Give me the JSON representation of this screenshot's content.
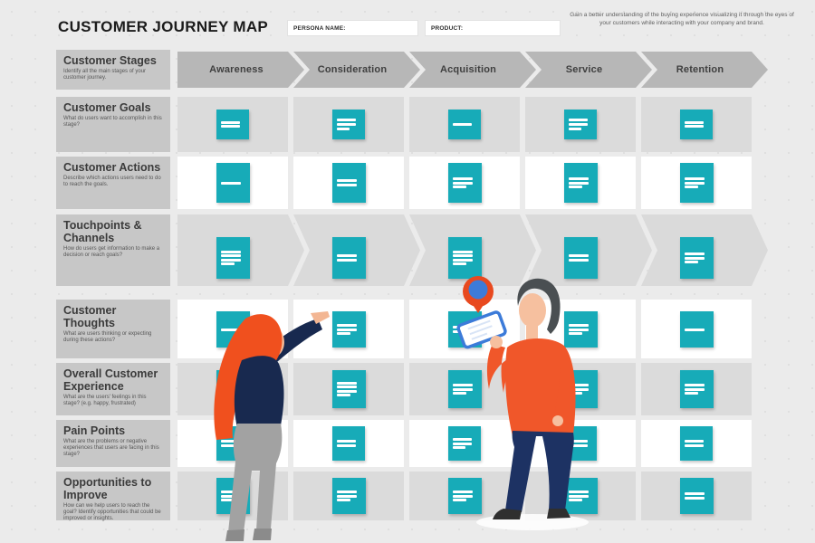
{
  "header": {
    "title": "CUSTOMER JOURNEY MAP",
    "persona_label": "PERSONA NAME:",
    "persona_value": "",
    "product_label": "PRODUCT:",
    "product_value": "",
    "description": "Gain a better understanding of the buying experience visualizing it through the eyes of your customers while interacting with your company and brand."
  },
  "stages": [
    "Awareness",
    "Consideration",
    "Acquisition",
    "Service",
    "Retention"
  ],
  "rows": [
    {
      "title": "Customer Stages",
      "description": "Identify all the main stages of your customer journey.",
      "kind": "header"
    },
    {
      "title": "Customer Goals",
      "description": "What do users want to accomplish in this stage?",
      "kind": "gray",
      "notes": [
        2,
        3,
        1,
        3,
        2
      ]
    },
    {
      "title": "Customer Actions",
      "description": "Describe which actions users need to do to reach the goals.",
      "kind": "white",
      "notes": [
        1,
        2,
        3,
        3,
        3
      ]
    },
    {
      "title": "Touchpoints & Channels",
      "description": "How do users get information to make a decision or reach goals?",
      "kind": "arrows",
      "notes": [
        4,
        2,
        4,
        2,
        3
      ]
    },
    {
      "title": "Customer Thoughts",
      "description": "What are users thinking or expecting during these actions?",
      "kind": "white",
      "notes": [
        1,
        3,
        2,
        3,
        1
      ]
    },
    {
      "title": "Overall Customer Experience",
      "description": "What are the users' feelings in this stage? (e.g. happy, frustrated)",
      "kind": "gray",
      "notes": [
        2,
        4,
        3,
        3,
        3
      ]
    },
    {
      "title": "Pain Points",
      "description": "What are the problems or negative experiences that users are facing in this stage?",
      "kind": "white",
      "notes": [
        2,
        2,
        3,
        2,
        2
      ]
    },
    {
      "title": "Opportunities to Improve",
      "description": "How can we help users to reach the goal? Identify opportunities that could be improved or insights.",
      "kind": "gray",
      "notes": [
        3,
        3,
        3,
        3,
        2
      ]
    }
  ],
  "icons": {
    "location_pin": "location-pin-icon",
    "phone": "smartphone-icon"
  },
  "colors": {
    "note_teal": "#17abb8",
    "accent_orange": "#f0572a",
    "pin_blue": "#3c7bd9",
    "navy": "#1b2c56",
    "arrow_gray": "#b7b7b7",
    "cell_gray": "#dbdbdb",
    "label_gray": "#c7c7c7",
    "background": "#ebebeb"
  }
}
